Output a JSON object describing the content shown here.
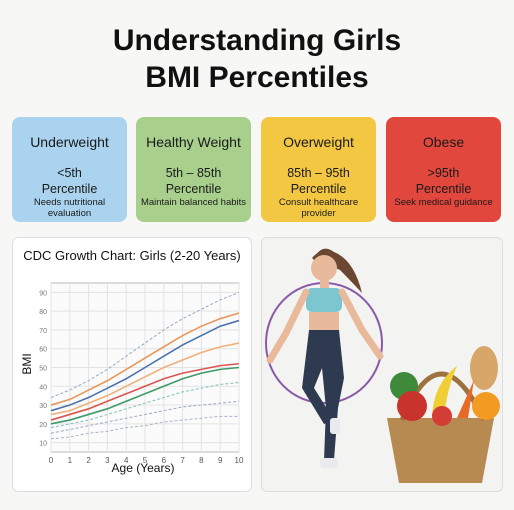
{
  "header": {
    "title": "Understanding Girls BMI Percentiles"
  },
  "cards": [
    {
      "title": "Underweight",
      "range": "<5th Percentile",
      "note": "Needs nutritional evaluation",
      "color": "#a9d3ee"
    },
    {
      "title": "Healthy Weight",
      "range": "5th – 85th Percentile",
      "note": "Maintain balanced habits",
      "color": "#a8d08c"
    },
    {
      "title": "Overweight",
      "range": "85th – 95th Percentile",
      "note": "Consult healthcare provider",
      "color": "#f4c743"
    },
    {
      "title": "Obese",
      "range": ">95th Percentile",
      "note": "Seek medical guidance",
      "color": "#e1473d"
    }
  ],
  "chart": {
    "type": "line",
    "title": "CDC Growth Chart: Girls (2-20 Years)",
    "x_label": "Age (Years)",
    "y_label": "BMI",
    "x": [
      0,
      1,
      2,
      3,
      4,
      5,
      6,
      7,
      8,
      9,
      10
    ],
    "xlim": [
      0,
      10
    ],
    "xticks": [
      0,
      1,
      2,
      3,
      4,
      5,
      6,
      7,
      8,
      9,
      10
    ],
    "ylim": [
      5,
      95
    ],
    "yticks": [
      10,
      20,
      30,
      40,
      50,
      60,
      70,
      80,
      90
    ],
    "grid": true,
    "series": [
      {
        "color": "#8fa8c8",
        "dashed": true,
        "values": [
          34,
          38,
          43,
          49,
          56,
          63,
          70,
          76,
          81,
          86,
          90
        ]
      },
      {
        "color": "#e8965a",
        "dashed": false,
        "values": [
          30,
          33,
          38,
          43,
          49,
          55,
          61,
          67,
          72,
          76,
          79
        ]
      },
      {
        "color": "#4a72b0",
        "dashed": false,
        "values": [
          27,
          30,
          34,
          39,
          44,
          50,
          56,
          62,
          67,
          72,
          75
        ]
      },
      {
        "color": "#f0b07a",
        "dashed": false,
        "values": [
          25,
          27,
          31,
          35,
          40,
          45,
          50,
          54,
          58,
          61,
          63
        ]
      },
      {
        "color": "#d9574f",
        "dashed": false,
        "values": [
          22,
          25,
          28,
          32,
          36,
          40,
          44,
          47,
          49,
          51,
          52
        ]
      },
      {
        "color": "#3f9a6a",
        "dashed": false,
        "values": [
          20,
          22,
          25,
          28,
          32,
          36,
          40,
          44,
          47,
          49,
          50
        ]
      },
      {
        "color": "#7fc0b8",
        "dashed": true,
        "values": [
          18,
          20,
          22,
          25,
          28,
          31,
          34,
          37,
          39,
          41,
          42
        ]
      },
      {
        "color": "#9aa8c0",
        "dashed": true,
        "values": [
          15,
          17,
          19,
          21,
          23,
          25,
          27,
          29,
          30,
          31,
          32
        ]
      },
      {
        "color": "#a8b4c8",
        "dashed": true,
        "values": [
          12,
          13,
          15,
          16,
          18,
          19,
          21,
          22,
          23,
          24,
          24
        ]
      }
    ]
  }
}
